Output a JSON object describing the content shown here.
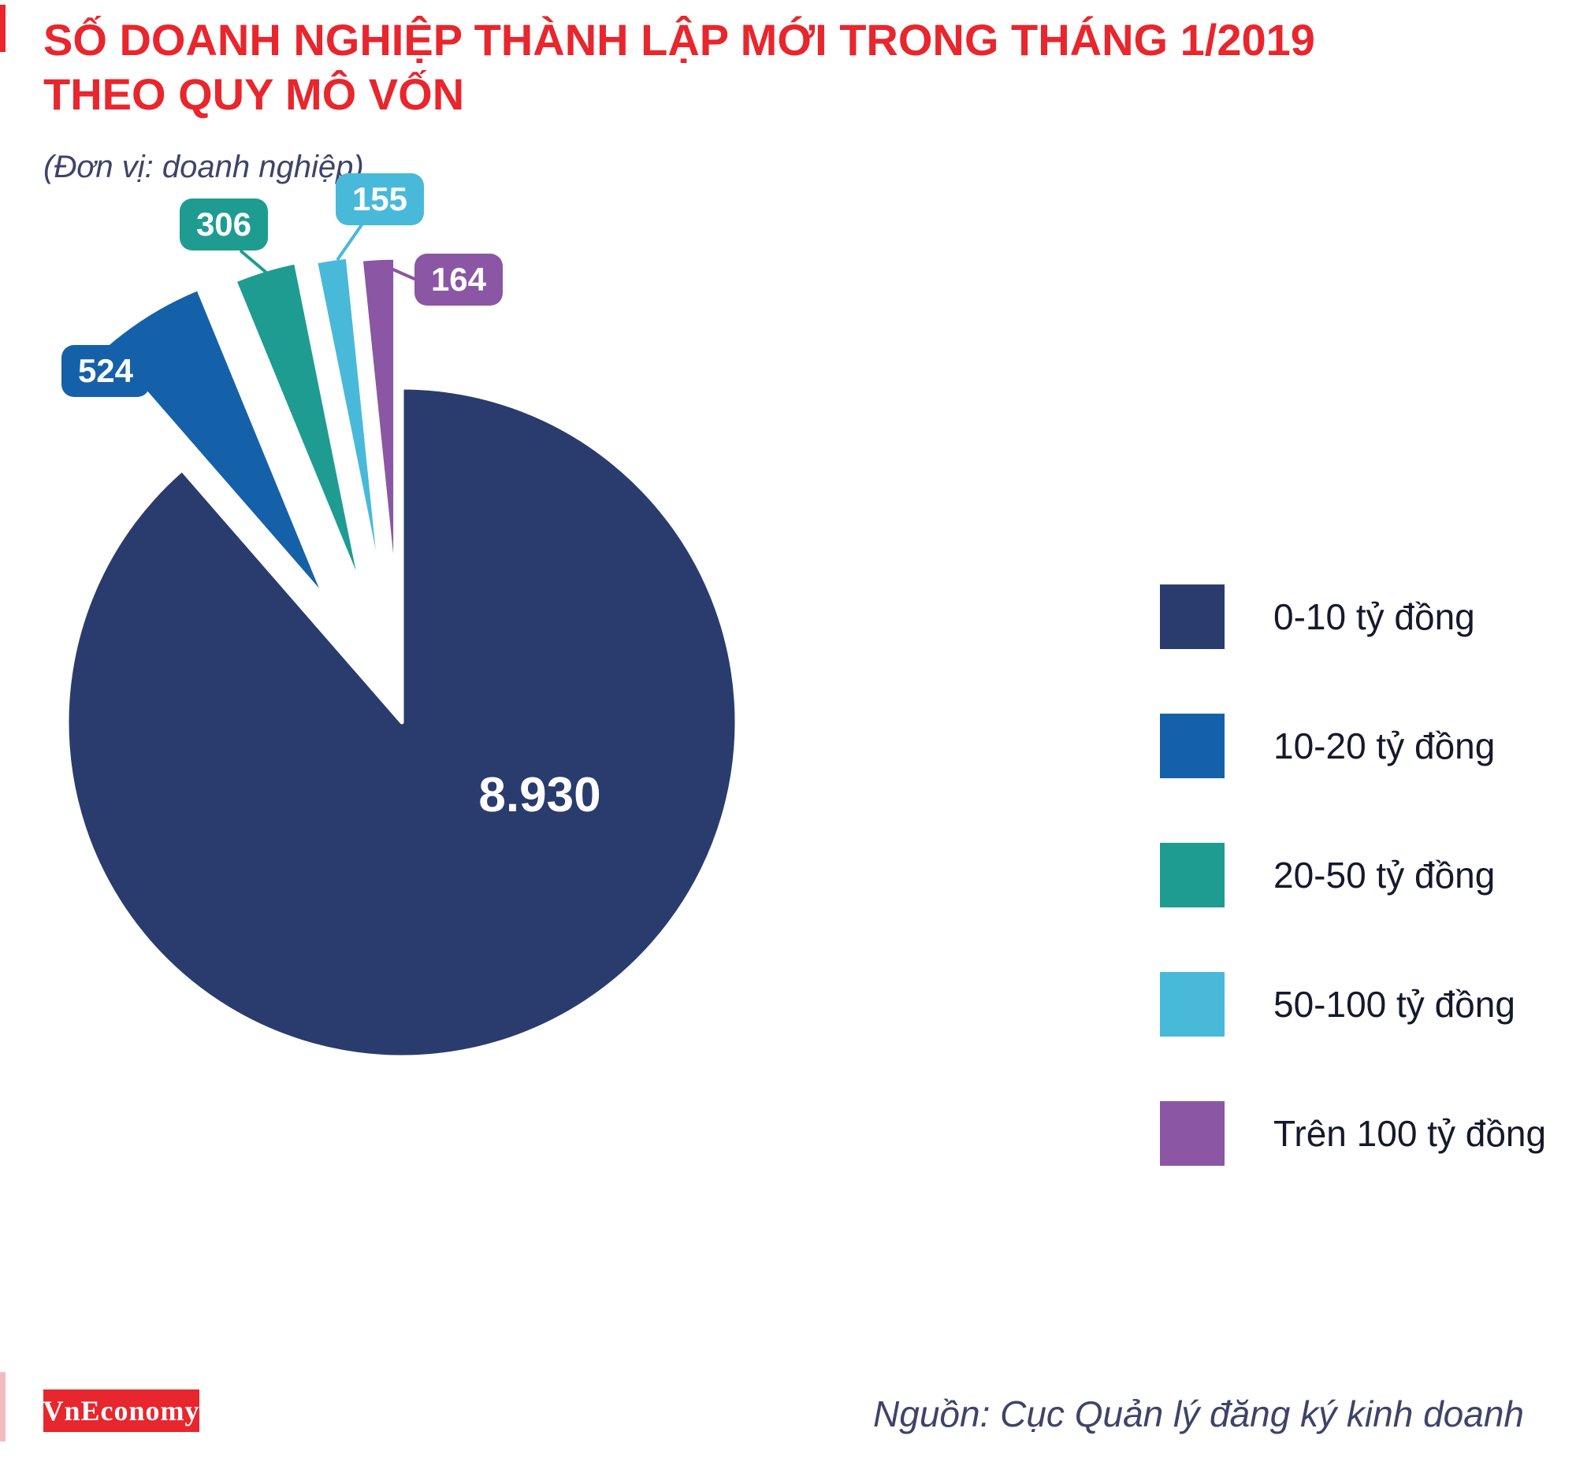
{
  "colors": {
    "brand_red": "#e8262d",
    "text_navy": "#3e4468",
    "legend_text": "#15192b",
    "background": "#ffffff"
  },
  "header": {
    "title": "SỐ DOANH NGHIỆP THÀNH LẬP MỚI TRONG THÁNG 1/2019\nTHEO QUY MÔ VỐN",
    "subtitle": "(Đơn vị: doanh nghiệp)"
  },
  "chart_data": {
    "type": "pie",
    "title": "Số doanh nghiệp thành lập mới trong tháng 1/2019 theo quy mô vốn",
    "unit_note": "(Đơn vị: doanh nghiệp)",
    "total": 10079,
    "legend_position": "right",
    "start_angle_deg": 0,
    "direction": "clockwise",
    "slices": [
      {
        "label": "0-10 tỷ đồng",
        "value": 8930,
        "display": "8.930",
        "color": "#2a3c6e"
      },
      {
        "label": "10-20 tỷ đồng",
        "value": 524,
        "display": "524",
        "color": "#1561a9"
      },
      {
        "label": "20-50 tỷ đồng",
        "value": 306,
        "display": "306",
        "color": "#1f9c92"
      },
      {
        "label": "50-100 tỷ đồng",
        "value": 155,
        "display": "155",
        "color": "#49b9d9"
      },
      {
        "label": "Trên 100 tỷ đồng",
        "value": 164,
        "display": "164",
        "color": "#8b56a4"
      }
    ]
  },
  "footer": {
    "logo": "VnEconomy",
    "source": "Nguồn: Cục Quản lý đăng ký kinh doanh"
  }
}
